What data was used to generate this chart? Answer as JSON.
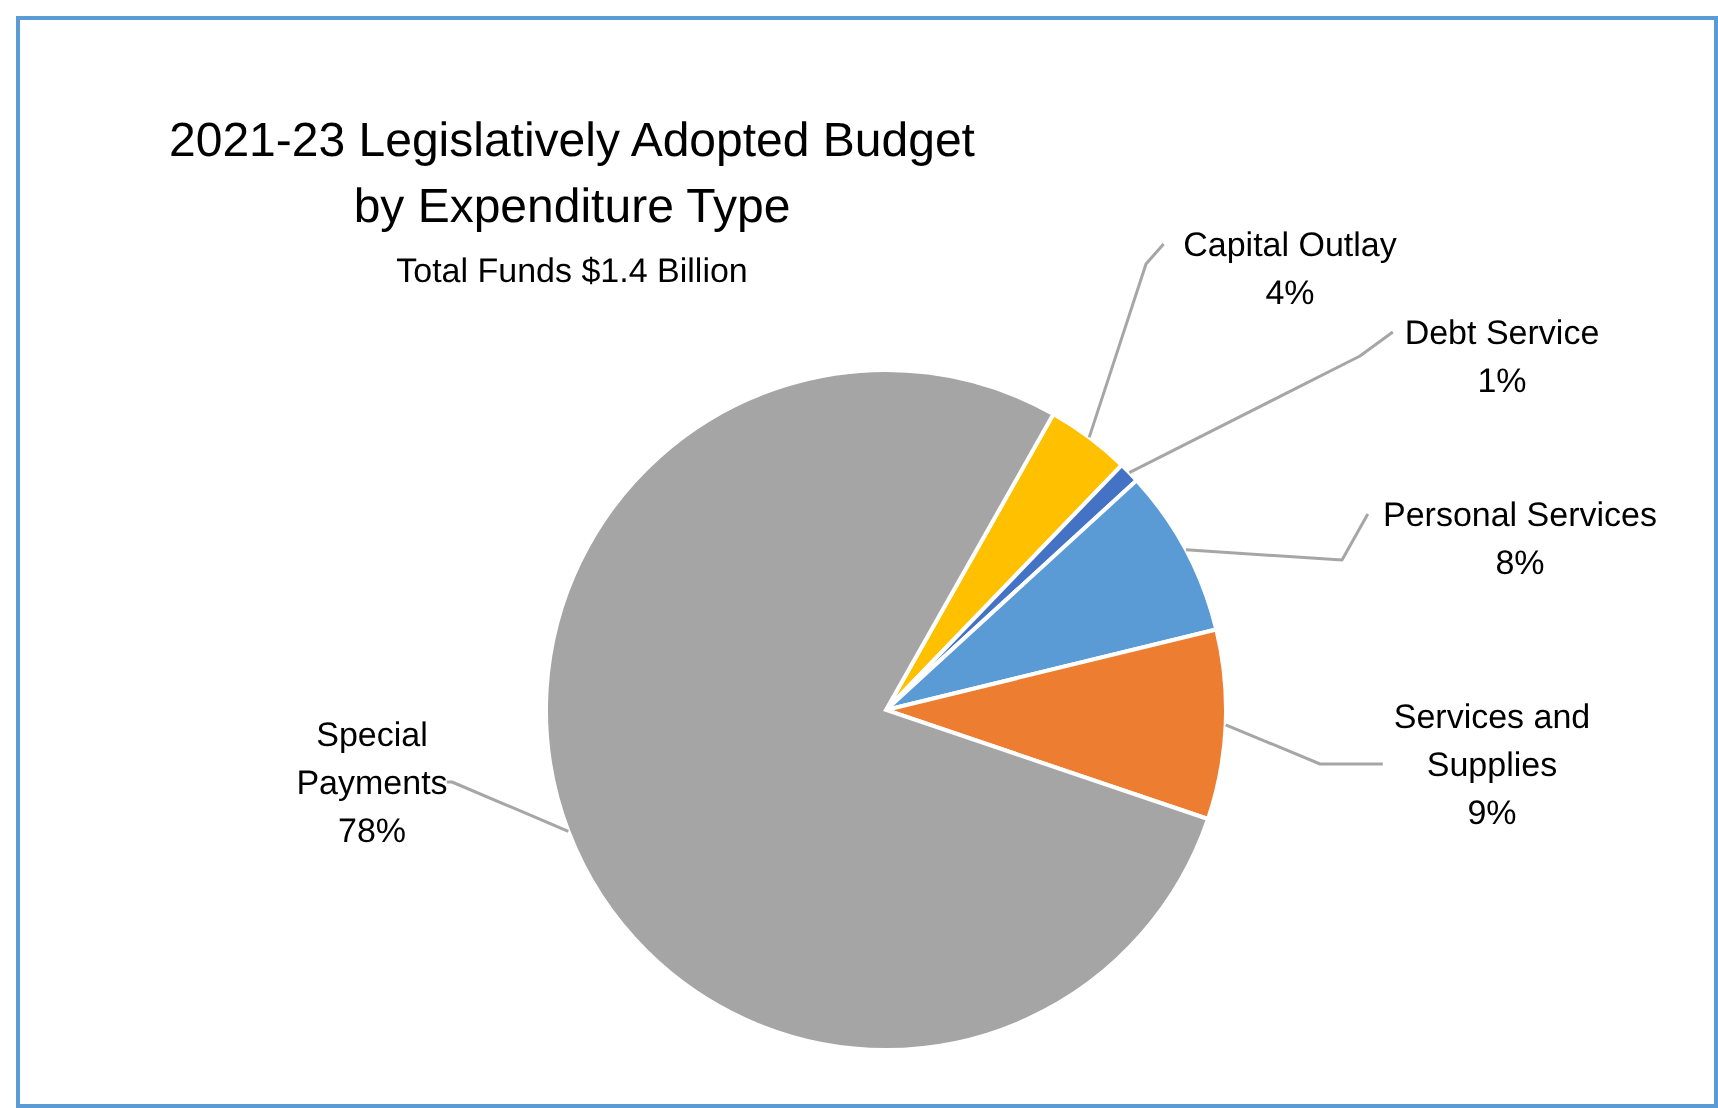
{
  "chart_data": {
    "type": "pie",
    "title": "2021-23 Legislatively Adopted Budget\nby Expenditure Type",
    "subtitle": "Total Funds $1.4 Billion",
    "categories": [
      "Capital Outlay",
      "Debt Service",
      "Personal Services",
      "Services and Supplies",
      "Special Payments"
    ],
    "values": [
      4,
      1,
      8,
      9,
      78
    ],
    "value_labels": [
      "4%",
      "1%",
      "8%",
      "9%",
      "78%"
    ],
    "colors": [
      "#ffc000",
      "#4472c4",
      "#5b9bd5",
      "#ed7d31",
      "#a5a5a5"
    ],
    "legend": false
  }
}
